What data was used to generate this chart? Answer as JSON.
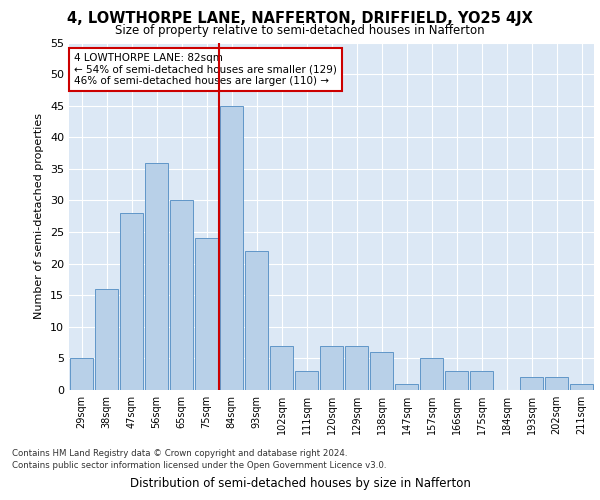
{
  "title1": "4, LOWTHORPE LANE, NAFFERTON, DRIFFIELD, YO25 4JX",
  "title2": "Size of property relative to semi-detached houses in Nafferton",
  "xlabel": "Distribution of semi-detached houses by size in Nafferton",
  "ylabel": "Number of semi-detached properties",
  "categories": [
    "29sqm",
    "38sqm",
    "47sqm",
    "56sqm",
    "65sqm",
    "75sqm",
    "84sqm",
    "93sqm",
    "102sqm",
    "111sqm",
    "120sqm",
    "129sqm",
    "138sqm",
    "147sqm",
    "157sqm",
    "166sqm",
    "175sqm",
    "184sqm",
    "193sqm",
    "202sqm",
    "211sqm"
  ],
  "values": [
    5,
    16,
    28,
    36,
    30,
    24,
    45,
    22,
    7,
    3,
    7,
    7,
    6,
    1,
    5,
    3,
    3,
    0,
    2,
    2,
    1
  ],
  "bar_color": "#b8d0e8",
  "bar_edge_color": "#6096c8",
  "highlight_index": 6,
  "red_line_color": "#cc0000",
  "annotation_text": "4 LOWTHORPE LANE: 82sqm\n← 54% of semi-detached houses are smaller (129)\n46% of semi-detached houses are larger (110) →",
  "annotation_box_color": "#ffffff",
  "annotation_box_edge": "#cc0000",
  "ylim": [
    0,
    55
  ],
  "yticks": [
    0,
    5,
    10,
    15,
    20,
    25,
    30,
    35,
    40,
    45,
    50,
    55
  ],
  "footer1": "Contains HM Land Registry data © Crown copyright and database right 2024.",
  "footer2": "Contains public sector information licensed under the Open Government Licence v3.0.",
  "fig_bg_color": "#ffffff",
  "plot_bg_color": "#dce8f5"
}
